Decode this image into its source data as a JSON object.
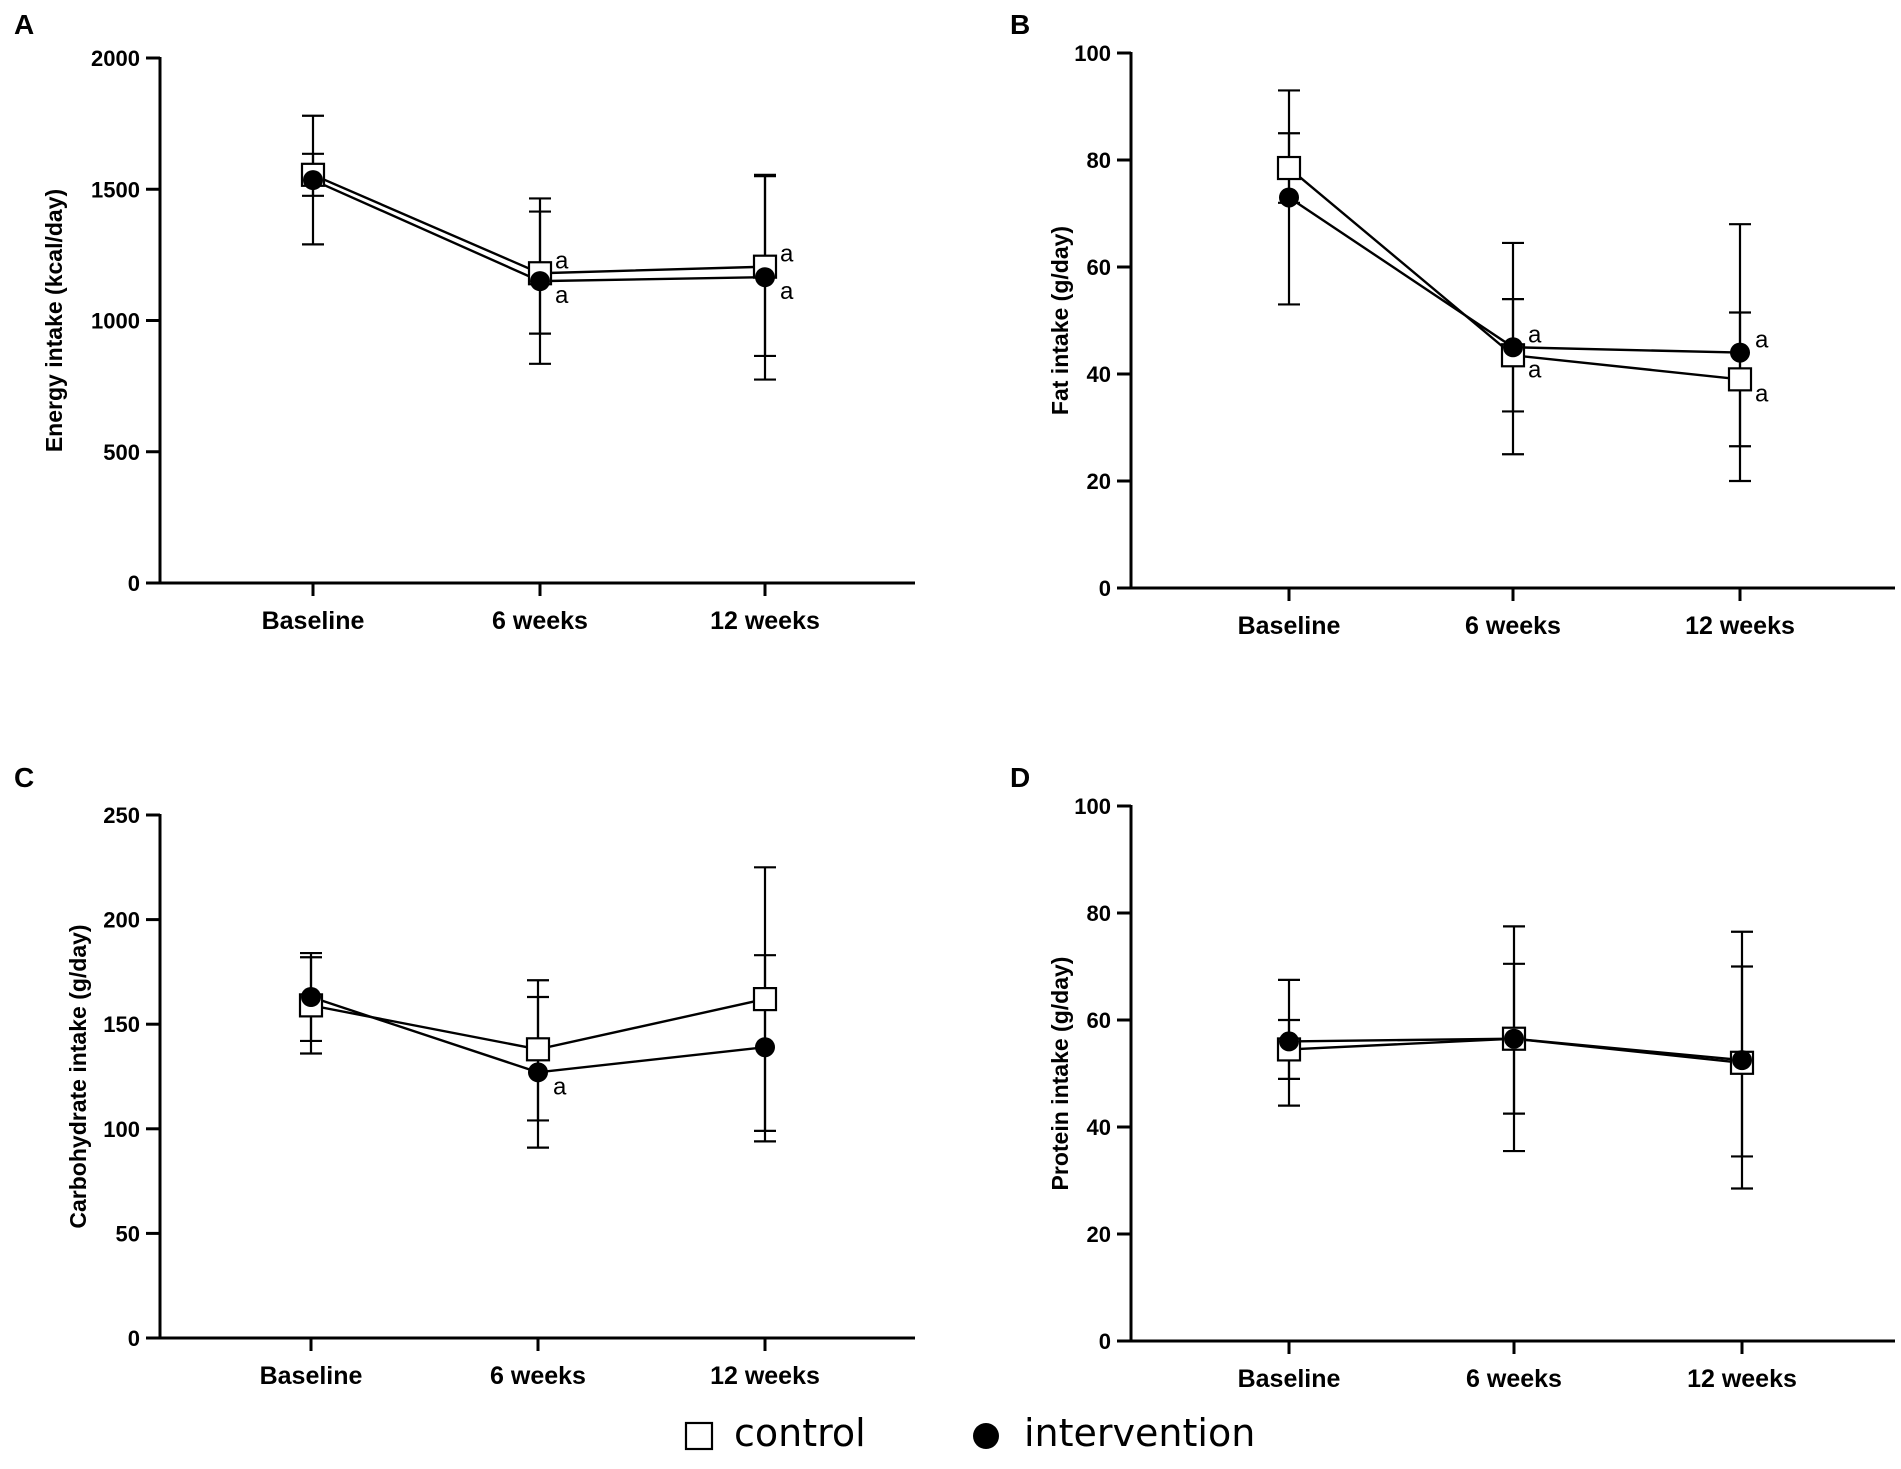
{
  "legend": {
    "control_label": "control",
    "intervention_label": "intervention"
  },
  "chart_data": [
    {
      "panel": "A",
      "type": "line",
      "ylabel": "Energy intake  (kcal/day)",
      "xlabel": "",
      "categories": [
        "Baseline",
        "6 weeks",
        "12 weeks"
      ],
      "ylim": [
        0,
        2000
      ],
      "yticks": [
        0,
        500,
        1000,
        1500,
        2000
      ],
      "series": [
        {
          "name": "control",
          "marker": "open-square",
          "values": [
            1555,
            1180,
            1205
          ],
          "err_low": [
            1475,
            950,
            865
          ],
          "err_high": [
            1635,
            1415,
            1550
          ],
          "sig": [
            "",
            "a",
            "a"
          ]
        },
        {
          "name": "intervention",
          "marker": "filled-circle",
          "values": [
            1535,
            1150,
            1165
          ],
          "err_low": [
            1290,
            835,
            775
          ],
          "err_high": [
            1780,
            1465,
            1555
          ],
          "sig": [
            "",
            "a",
            "a"
          ]
        }
      ]
    },
    {
      "panel": "B",
      "type": "line",
      "ylabel": "Fat intake  (g/day)",
      "xlabel": "",
      "categories": [
        "Baseline",
        "6 weeks",
        "12 weeks"
      ],
      "ylim": [
        0,
        100
      ],
      "yticks": [
        0,
        20,
        40,
        60,
        80,
        100
      ],
      "series": [
        {
          "name": "control",
          "marker": "open-square",
          "values": [
            78.5,
            43.5,
            39
          ],
          "err_low": [
            72,
            33,
            26.5
          ],
          "err_high": [
            85,
            54,
            51.5
          ],
          "sig": [
            "",
            "a",
            "a"
          ]
        },
        {
          "name": "intervention",
          "marker": "filled-circle",
          "values": [
            73,
            45,
            44
          ],
          "err_low": [
            53,
            25,
            20
          ],
          "err_high": [
            93,
            64.5,
            68
          ],
          "sig": [
            "",
            "a",
            "a"
          ]
        }
      ]
    },
    {
      "panel": "C",
      "type": "line",
      "ylabel": "Carbohydrate intake  (g/day)",
      "xlabel": "",
      "categories": [
        "Baseline",
        "6 weeks",
        "12 weeks"
      ],
      "ylim": [
        0,
        250
      ],
      "yticks": [
        0,
        50,
        100,
        150,
        200,
        250
      ],
      "series": [
        {
          "name": "control",
          "marker": "open-square",
          "values": [
            159,
            138,
            162
          ],
          "err_low": [
            136,
            104,
            99
          ],
          "err_high": [
            182,
            171,
            183
          ],
          "sig": [
            "",
            "",
            ""
          ]
        },
        {
          "name": "intervention",
          "marker": "filled-circle",
          "values": [
            163,
            127,
            139
          ],
          "err_low": [
            142,
            91,
            94
          ],
          "err_high": [
            184,
            163,
            225
          ],
          "sig": [
            "",
            "a",
            ""
          ]
        }
      ]
    },
    {
      "panel": "D",
      "type": "line",
      "ylabel": "Protein intake  (g/day)",
      "xlabel": "",
      "categories": [
        "Baseline",
        "6 weeks",
        "12 weeks"
      ],
      "ylim": [
        0,
        100
      ],
      "yticks": [
        0,
        20,
        40,
        60,
        80,
        100
      ],
      "series": [
        {
          "name": "control",
          "marker": "open-square",
          "values": [
            54.5,
            56.5,
            52
          ],
          "err_low": [
            49,
            42.5,
            34.5
          ],
          "err_high": [
            60,
            70.5,
            70
          ],
          "sig": [
            "",
            "",
            ""
          ]
        },
        {
          "name": "intervention",
          "marker": "filled-circle",
          "values": [
            56,
            56.5,
            52.5
          ],
          "err_low": [
            44,
            35.5,
            28.5
          ],
          "err_high": [
            67.5,
            77.5,
            76.5
          ],
          "sig": [
            "",
            "",
            ""
          ]
        }
      ]
    }
  ]
}
